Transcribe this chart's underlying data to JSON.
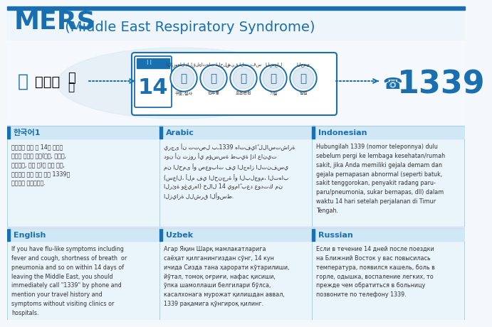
{
  "title_mers": "MERS",
  "title_sub": " (Middle East Respiratory Syndrome)",
  "bg_color": "#f5f8fb",
  "blue_color": "#1a6faf",
  "white": "#ffffff",
  "section_bg": "#eaf4fb",
  "header_bg": "#d0e8f5",
  "text_color": "#2a2a2a",
  "sections": [
    {
      "lang": "한국어1",
      "text": "중동지역 여행 후 14일 이내에\n발열과 호흡기 증상(기침, 인후통,\n호흡곤란, 폐렴 등)이 있을 경우,\n의료기관 가지 말고 먼저 1339로\n전화하여 문의하세요."
    },
    {
      "lang": "Arabic",
      "text": "يرجى أن تتصل بـ1339 هاتفياً للاستشارة\nدون أن تزور أي مؤسسة طبية إذا عانيت\nمن الحمى أو صعوبات في الجهاز التنفسي\n(سعال، ألم في الحنجرة أو البلعوم، التهاب\nالرئة وغيرها) خلال 14 يوماً بعد عودتك من\nالزيارة للشرق الأوسط."
    },
    {
      "lang": "Indonesian",
      "text": "Hubungilah 1339 (nomor teleponnya) dulu\nsebelum pergi ke lembaga kesehatan/rumah\nsakit, jika Anda memiliki gejala demam dan\ngejala pernapasan abnormal (seperti batuk,\nsakit tenggorokan, penyakit radang paru-\nparu/pneumonia, sukar bernapas, dll) dalam\nwaktu 14 hari setelah perjalanan di Timur\nTengah."
    },
    {
      "lang": "English",
      "text": "If you have flu-like symptoms including\nfever and cough, shortness of breath  or\npneumonia and so on within 14 days of\nleaving the Middle East, you should\nimmediately call \"1339\" by phone and\nmention your travel history and\nsymptoms without visiting clinics or\nhospitals."
    },
    {
      "lang": "Uzbek",
      "text": "Агар Яқин Шарқ мамлакатларига\nсаёҳат қилганингиздан сўнг, 14 кун\nичида Сизда тана ҳарорати кўтарилиши,\nйўтал, томоқ оғриғи, нафас қисиши,\nўпка шамоллаши белгилари бўлса,\nкасалхонага мурожат қилишдан аввал,\n1339 рақамига қўнгироқ қилинг."
    },
    {
      "lang": "Russian",
      "text": "Если в течение 14 дней после поездки\nна Ближний Восток у вас повысилась\nтемпература, появился кашель, боль в\nгорле, одышка, воспаление легких, то\nпрежде чем обратиться в больницу\nпозвоните по телефону 1339."
    }
  ],
  "symptoms_kr": [
    "구토,설사",
    "인후통",
    "호흡곤란",
    "기침",
    "발열"
  ],
  "symptoms_ar": [
    "الإسهال /القيء",
    "التهاب الحلق",
    "ضيق التنفس",
    "السعال",
    "الحمى"
  ],
  "number": "1339",
  "day_number": "14"
}
